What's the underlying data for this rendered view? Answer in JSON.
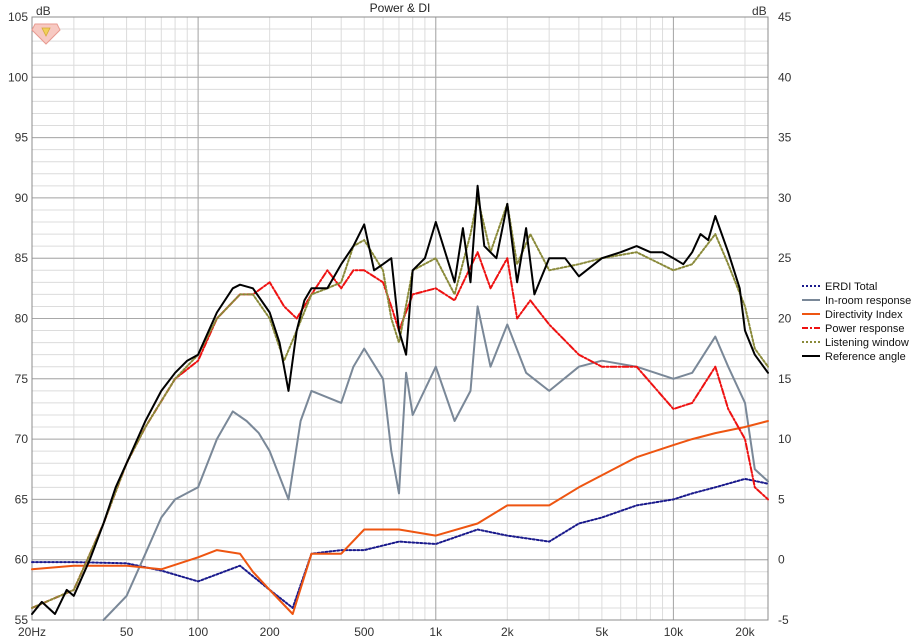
{
  "chart_data": {
    "type": "line",
    "title": "Power & DI",
    "x_scale": "log",
    "xlim": [
      20,
      25000
    ],
    "ylim_left": [
      55,
      105
    ],
    "ylim_right": [
      -5,
      45
    ],
    "left_unit": "dB",
    "right_unit": "dB",
    "x_ticks": [
      20,
      50,
      100,
      200,
      500,
      1000,
      2000,
      5000,
      10000,
      20000
    ],
    "x_tick_labels": [
      "20Hz",
      "50",
      "100",
      "200",
      "500",
      "1k",
      "2k",
      "5k",
      "10k",
      "20k"
    ],
    "y_left_ticks": [
      55,
      60,
      65,
      70,
      75,
      80,
      85,
      90,
      95,
      100,
      105
    ],
    "y_right_ticks": [
      -5,
      0,
      5,
      10,
      15,
      20,
      25,
      30,
      35,
      40,
      45
    ],
    "grid": true,
    "legend_position": "right",
    "colors": {
      "erdi": "#1a1a8c",
      "inroom": "#7a8898",
      "di": "#ee5511",
      "power": "#ee1111",
      "lw": "#8a8a3a",
      "ref": "#000000",
      "grid_major": "#a8a8a8",
      "grid_minor": "#dcdcdc"
    },
    "series": [
      {
        "key": "erdi",
        "name": "ERDI Total",
        "axis": "right",
        "style": "dotted",
        "x": [
          20,
          30,
          50,
          70,
          100,
          150,
          200,
          250,
          300,
          400,
          500,
          700,
          1000,
          1500,
          2000,
          3000,
          4000,
          5000,
          7000,
          10000,
          12000,
          15000,
          20000,
          25000
        ],
        "y": [
          -0.2,
          -0.2,
          -0.3,
          -0.9,
          -1.8,
          -0.5,
          -2.5,
          -4.0,
          0.5,
          0.8,
          0.8,
          1.5,
          1.3,
          2.5,
          2.0,
          1.5,
          3.0,
          3.5,
          4.5,
          5.0,
          5.5,
          6.0,
          6.7,
          6.3
        ]
      },
      {
        "key": "inroom",
        "name": "In-room response",
        "axis": "left",
        "style": "solid",
        "x": [
          40,
          50,
          60,
          70,
          80,
          100,
          120,
          140,
          160,
          180,
          200,
          240,
          270,
          300,
          400,
          450,
          500,
          600,
          650,
          700,
          750,
          800,
          1000,
          1200,
          1400,
          1500,
          1700,
          2000,
          2400,
          3000,
          4000,
          5000,
          7000,
          10000,
          12000,
          15000,
          17000,
          20000,
          22000,
          25000
        ],
        "y": [
          55,
          57,
          60.5,
          63.5,
          65.0,
          66.0,
          70.0,
          72.3,
          71.5,
          70.5,
          69.0,
          65.0,
          71.5,
          74.0,
          73.0,
          76.0,
          77.5,
          75.0,
          69.0,
          65.5,
          75.5,
          72.0,
          76.0,
          71.5,
          74.0,
          81.0,
          76.0,
          79.5,
          75.5,
          74.0,
          76.0,
          76.5,
          76.0,
          75.0,
          75.5,
          78.5,
          76.0,
          73.0,
          67.5,
          66.5
        ]
      },
      {
        "key": "di",
        "name": "Directivity Index",
        "axis": "right",
        "style": "solid",
        "x": [
          20,
          30,
          50,
          70,
          100,
          120,
          150,
          170,
          200,
          250,
          300,
          400,
          500,
          700,
          1000,
          1500,
          2000,
          3000,
          4000,
          5000,
          7000,
          10000,
          12000,
          15000,
          20000,
          25000
        ],
        "y": [
          -0.8,
          -0.5,
          -0.5,
          -0.8,
          0.2,
          0.8,
          0.5,
          -1.0,
          -2.5,
          -4.5,
          0.5,
          0.5,
          2.5,
          2.5,
          2.0,
          3.0,
          4.5,
          4.5,
          6.0,
          7.0,
          8.5,
          9.5,
          10.0,
          10.5,
          11.0,
          11.5
        ]
      },
      {
        "key": "power",
        "name": "Power response",
        "axis": "left",
        "style": "dashdot",
        "x": [
          20,
          30,
          40,
          50,
          60,
          80,
          100,
          120,
          150,
          170,
          200,
          230,
          260,
          300,
          350,
          400,
          450,
          500,
          600,
          650,
          700,
          800,
          1000,
          1200,
          1500,
          1700,
          2000,
          2200,
          2500,
          3000,
          4000,
          5000,
          7000,
          10000,
          12000,
          15000,
          17000,
          20000,
          22000,
          25000
        ],
        "y": [
          56.0,
          57.5,
          63.0,
          68.0,
          71.0,
          75.0,
          76.5,
          80.0,
          82.0,
          82.0,
          83.0,
          81.0,
          80.0,
          82.0,
          84.0,
          82.5,
          84.0,
          84.0,
          83.0,
          81.0,
          79.0,
          82.0,
          82.5,
          81.5,
          85.5,
          82.5,
          85.0,
          80.0,
          81.5,
          79.5,
          77.0,
          76.0,
          76.0,
          72.5,
          73.0,
          76.0,
          72.5,
          70.0,
          66.0,
          65.0
        ]
      },
      {
        "key": "lw",
        "name": "Listening window",
        "axis": "left",
        "style": "dotted",
        "x": [
          20,
          30,
          40,
          50,
          60,
          80,
          100,
          120,
          150,
          170,
          200,
          230,
          260,
          300,
          350,
          400,
          450,
          500,
          600,
          650,
          700,
          800,
          1000,
          1200,
          1400,
          1500,
          1700,
          2000,
          2200,
          2500,
          3000,
          4000,
          5000,
          7000,
          10000,
          12000,
          15000,
          17000,
          20000,
          22000,
          25000
        ],
        "y": [
          56.0,
          57.5,
          63.0,
          68.0,
          71.0,
          75.0,
          77.0,
          80.0,
          82.0,
          82.0,
          80.0,
          76.5,
          79.0,
          82.0,
          82.5,
          83.0,
          86.0,
          86.5,
          84.0,
          80.0,
          78.0,
          84.0,
          85.0,
          82.0,
          87.0,
          90.0,
          85.5,
          89.5,
          84.5,
          87.0,
          84.0,
          84.5,
          85.0,
          85.5,
          84.0,
          84.5,
          87.0,
          84.5,
          81.0,
          77.5,
          76.0
        ]
      },
      {
        "key": "ref",
        "name": "Reference angle",
        "axis": "left",
        "style": "solid",
        "x": [
          20,
          22,
          25,
          28,
          30,
          35,
          40,
          45,
          50,
          60,
          70,
          80,
          90,
          100,
          120,
          140,
          150,
          170,
          200,
          220,
          240,
          260,
          280,
          300,
          350,
          400,
          450,
          500,
          550,
          600,
          650,
          700,
          750,
          800,
          900,
          1000,
          1200,
          1300,
          1400,
          1500,
          1600,
          1800,
          2000,
          2200,
          2400,
          2600,
          3000,
          3500,
          4000,
          5000,
          6000,
          7000,
          8000,
          9000,
          10000,
          11000,
          12000,
          13000,
          14000,
          15000,
          17000,
          19000,
          20000,
          22000,
          25000
        ],
        "y": [
          55.5,
          56.5,
          55.5,
          57.5,
          57.0,
          60.0,
          63.0,
          66.0,
          68.0,
          71.5,
          74.0,
          75.5,
          76.5,
          77.0,
          80.5,
          82.5,
          82.8,
          82.5,
          80.5,
          78.0,
          74.0,
          79.0,
          81.5,
          82.5,
          82.5,
          84.5,
          86.0,
          87.8,
          84.0,
          84.5,
          85.0,
          79.0,
          77.0,
          84.0,
          85.0,
          88.0,
          83.0,
          87.5,
          83.0,
          91.0,
          86.0,
          85.0,
          89.5,
          83.0,
          87.5,
          82.0,
          85.0,
          85.0,
          83.5,
          85.0,
          85.5,
          86.0,
          85.5,
          85.5,
          85.0,
          84.5,
          85.5,
          87.0,
          86.5,
          88.5,
          85.5,
          82.5,
          79.0,
          77.0,
          75.5
        ]
      }
    ]
  }
}
